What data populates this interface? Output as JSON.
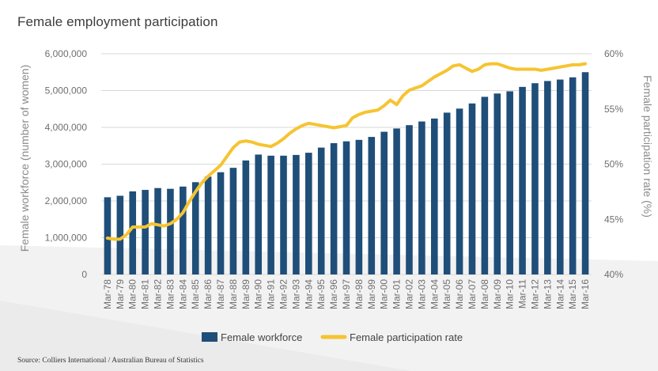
{
  "title": "Female employment participation",
  "source": "Source: Colliers International / Australian Bureau of Statistics",
  "colors": {
    "bar": "#1f4e79",
    "line": "#f6c431",
    "grid": "#d9d9d9",
    "axis_text": "#6e6e6e"
  },
  "chart_data": {
    "type": "bar",
    "title": "Female employment participation",
    "categories": [
      "Mar-78",
      "Mar-79",
      "Mar-80",
      "Mar-81",
      "Mar-82",
      "Mar-83",
      "Mar-84",
      "Mar-85",
      "Mar-86",
      "Mar-87",
      "Mar-88",
      "Mar-89",
      "Mar-90",
      "Mar-91",
      "Mar-92",
      "Mar-93",
      "Mar-94",
      "Mar-95",
      "Mar-96",
      "Mar-97",
      "Mar-98",
      "Mar-99",
      "Mar-00",
      "Mar-01",
      "Mar-02",
      "Mar-03",
      "Mar-04",
      "Mar-05",
      "Mar-06",
      "Mar-07",
      "Mar-08",
      "Mar-09",
      "Mar-10",
      "Mar-11",
      "Mar-12",
      "Mar-13",
      "Mar-14",
      "Mar-15",
      "Mar-16"
    ],
    "series": [
      {
        "name": "Female workforce",
        "type": "bar",
        "axis": "left",
        "values": [
          2100000,
          2140000,
          2260000,
          2300000,
          2350000,
          2330000,
          2390000,
          2510000,
          2660000,
          2780000,
          2900000,
          3100000,
          3260000,
          3230000,
          3230000,
          3250000,
          3310000,
          3450000,
          3570000,
          3620000,
          3660000,
          3740000,
          3880000,
          3970000,
          4060000,
          4160000,
          4240000,
          4400000,
          4510000,
          4650000,
          4830000,
          4920000,
          4980000,
          5100000,
          5200000,
          5260000,
          5300000,
          5360000,
          5500000
        ]
      },
      {
        "name": "Female participation rate",
        "type": "line",
        "axis": "right",
        "unit": "%",
        "x": [
          0,
          0.5,
          1,
          1.5,
          2,
          2.5,
          3,
          3.5,
          4,
          4.5,
          5,
          5.5,
          6,
          6.5,
          7,
          7.5,
          8,
          8.5,
          9,
          9.5,
          10,
          10.5,
          11,
          11.5,
          12,
          12.5,
          13,
          13.5,
          14,
          14.5,
          15,
          15.5,
          16,
          16.5,
          17,
          17.5,
          18,
          18.5,
          19,
          19.5,
          20,
          20.5,
          21,
          21.5,
          22,
          22.5,
          23,
          23.5,
          24,
          24.5,
          25,
          25.5,
          26,
          26.5,
          27,
          27.5,
          28,
          28.5,
          29,
          29.5,
          30,
          30.5,
          31,
          31.5,
          32,
          32.5,
          33,
          33.5,
          34,
          34.5,
          35,
          35.5,
          36,
          36.5,
          37,
          37.5,
          38
        ],
        "values": [
          43.3,
          43.2,
          43.2,
          43.6,
          44.3,
          44.3,
          44.3,
          44.6,
          44.5,
          44.4,
          44.6,
          45.0,
          45.6,
          46.6,
          47.5,
          48.3,
          48.9,
          49.4,
          49.9,
          50.7,
          51.5,
          52.0,
          52.1,
          52.0,
          51.8,
          51.7,
          51.6,
          51.9,
          52.3,
          52.8,
          53.2,
          53.5,
          53.7,
          53.6,
          53.5,
          53.4,
          53.3,
          53.4,
          53.5,
          54.2,
          54.5,
          54.7,
          54.8,
          54.9,
          55.3,
          55.8,
          55.4,
          56.2,
          56.7,
          56.9,
          57.1,
          57.5,
          57.9,
          58.2,
          58.5,
          58.9,
          59.0,
          58.7,
          58.4,
          58.6,
          59.0,
          59.1,
          59.1,
          58.9,
          58.7,
          58.6,
          58.6,
          58.6,
          58.6,
          58.5,
          58.6,
          58.7,
          58.8,
          58.9,
          59.0,
          59.0,
          59.1
        ]
      }
    ],
    "y_left": {
      "label": "Female workforce (number of women)",
      "min": 0,
      "max": 6000000,
      "ticks": [
        0,
        1000000,
        2000000,
        3000000,
        4000000,
        5000000,
        6000000
      ],
      "tick_labels": [
        "0",
        "1,000,000",
        "2,000,000",
        "3,000,000",
        "4,000,000",
        "5,000,000",
        "6,000,000"
      ]
    },
    "y_right": {
      "label": "Female participation rate (%)",
      "min": 40,
      "max": 60,
      "ticks": [
        40,
        45,
        50,
        55,
        60
      ],
      "tick_labels": [
        "40%",
        "45%",
        "50%",
        "55%",
        "60%"
      ]
    },
    "grid": true,
    "legend": {
      "position": "bottom",
      "entries": [
        "Female workforce",
        "Female participation rate"
      ]
    }
  }
}
